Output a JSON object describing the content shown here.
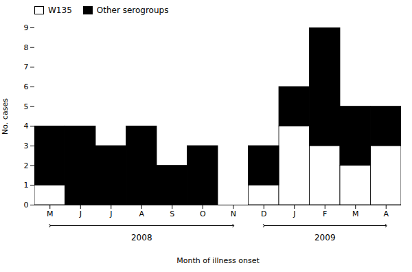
{
  "chart_data": {
    "type": "bar",
    "stacked": true,
    "categories": [
      "M",
      "J",
      "J",
      "A",
      "S",
      "O",
      "N",
      "D",
      "J",
      "F",
      "M",
      "A"
    ],
    "series": [
      {
        "name": "W135",
        "color": "#ffffff",
        "values": [
          1,
          0,
          0,
          0,
          0,
          0,
          0,
          1,
          4,
          3,
          2,
          3
        ]
      },
      {
        "name": "Other serogroups",
        "color": "#000000",
        "values": [
          3,
          4,
          3,
          4,
          2,
          3,
          0,
          2,
          2,
          6,
          3,
          2
        ]
      }
    ],
    "xlabel": "Month of illness onset",
    "ylabel": "No. cases",
    "ylim": [
      0,
      9
    ],
    "yticks": [
      0,
      1,
      2,
      3,
      4,
      5,
      6,
      7,
      8,
      9
    ],
    "annotations": [
      {
        "text": "2008",
        "start": 0,
        "end": 6
      },
      {
        "text": "2009",
        "start": 7,
        "end": 11
      }
    ],
    "legend": "upper left",
    "grid": false
  }
}
